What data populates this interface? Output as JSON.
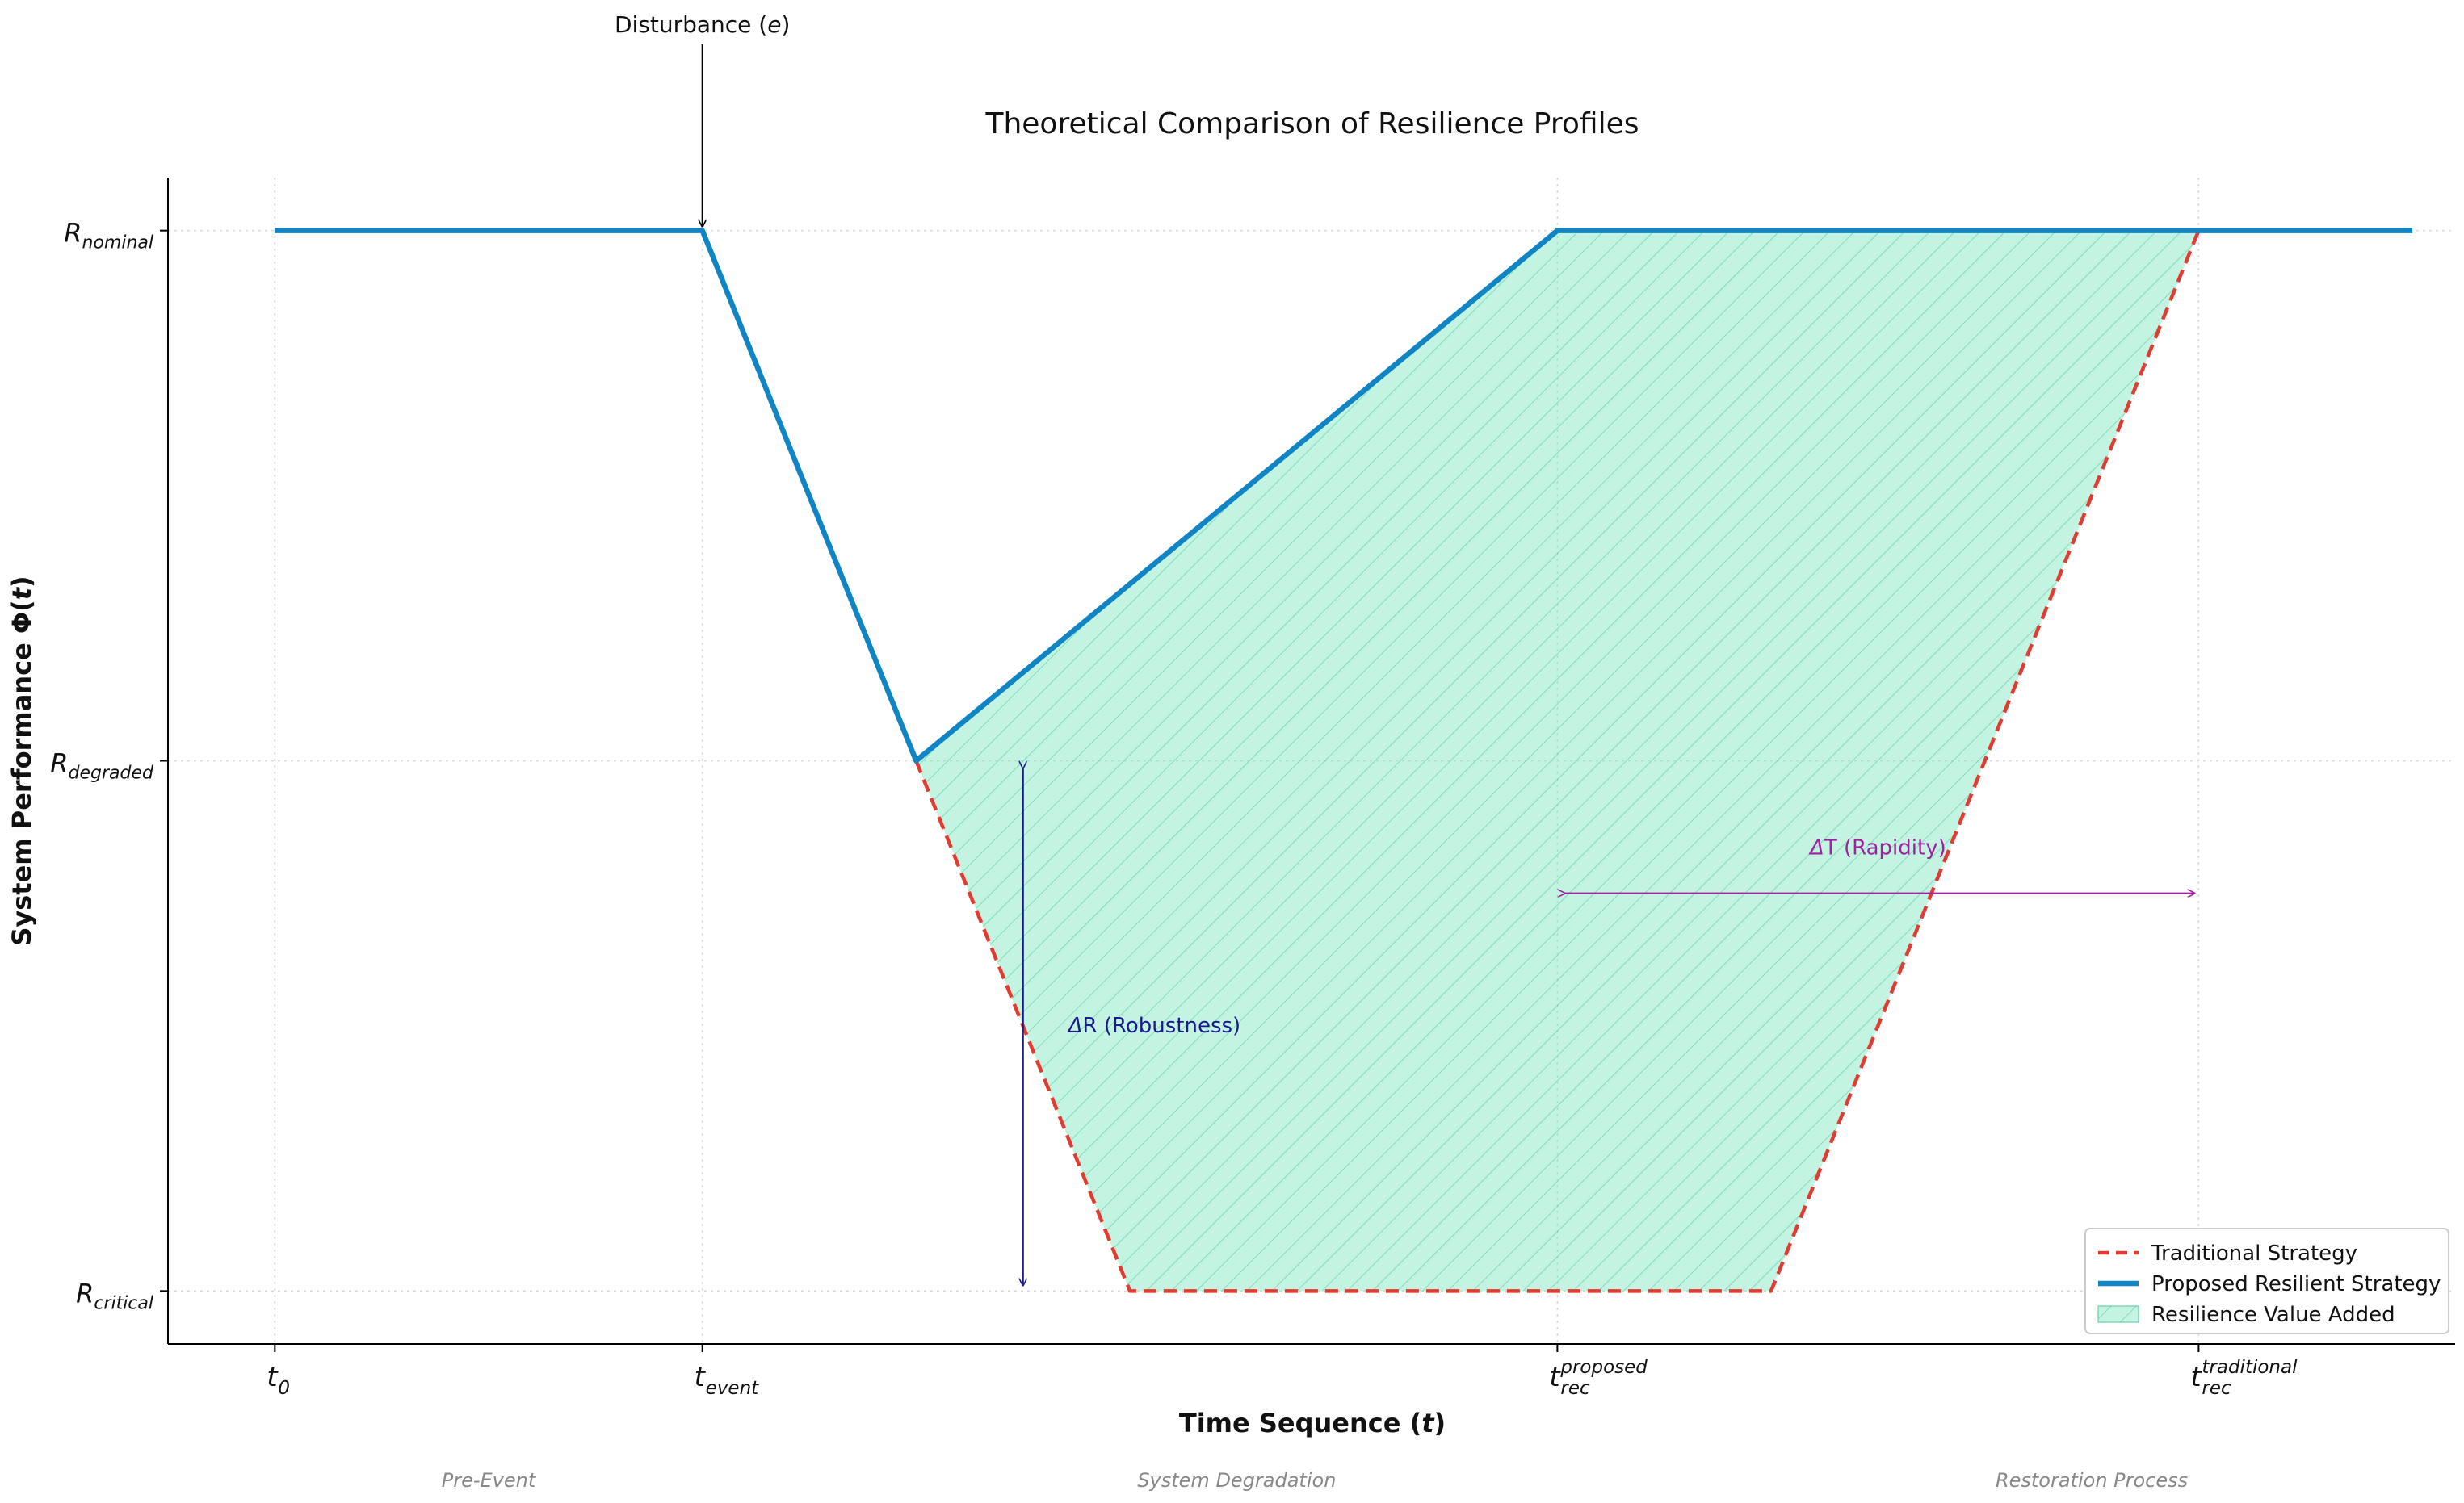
{
  "chart_data": {
    "type": "line",
    "title": "Theoretical Comparison of Resilience Profiles",
    "xlabel": {
      "text": "Time Sequence (",
      "var": "t",
      "close": ")"
    },
    "ylabel": {
      "text": "System Performance Φ(",
      "var": "t",
      "close": ")"
    },
    "grid": true,
    "xlim": [
      -0.5,
      10.2
    ],
    "ylim": [
      -0.1,
      2.1
    ],
    "yticks": [
      {
        "value": 2,
        "base": "R",
        "sub": "nominal"
      },
      {
        "value": 1,
        "base": "R",
        "sub": "degraded"
      },
      {
        "value": 0,
        "base": "R",
        "sub": "critical"
      }
    ],
    "xticks": [
      {
        "value": 0,
        "base": "t",
        "sub": "0",
        "sup": ""
      },
      {
        "value": 2,
        "base": "t",
        "sub": "event",
        "sup": ""
      },
      {
        "value": 6,
        "base": "t",
        "sub": "rec",
        "sup": "proposed"
      },
      {
        "value": 9,
        "base": "t",
        "sub": "rec",
        "sup": "traditional"
      }
    ],
    "series": [
      {
        "name": "Traditional Strategy",
        "color": "#e03c31",
        "style": "dashed",
        "x": [
          3,
          4,
          7,
          9,
          10
        ],
        "y": [
          1,
          0,
          0,
          2,
          2
        ]
      },
      {
        "name": "Proposed Resilient Strategy",
        "color": "#1184c4",
        "style": "solid",
        "x": [
          0,
          2,
          3,
          6,
          10
        ],
        "y": [
          2,
          2,
          1,
          2,
          2
        ]
      }
    ],
    "fill": {
      "name": "Resilience Value Added",
      "color": "#6fe3b8",
      "hatch": true
    },
    "annotations": {
      "disturbance": {
        "text": "Disturbance (",
        "var": "e",
        "close": ")",
        "x": 2,
        "y": 2
      },
      "robustness": {
        "text": "R (Robustness)",
        "x": 3.5,
        "y_from": 1,
        "y_to": 0,
        "color": "#1a1a8c"
      },
      "rapidity": {
        "text": "T (Rapidity)",
        "x_from": 6,
        "x_to": 9,
        "y": 0.75,
        "color": "#a020a0"
      }
    },
    "phases": [
      {
        "label": "Pre-Event",
        "x": 1
      },
      {
        "label": "System Degradation",
        "x": 4.5
      },
      {
        "label": "Restoration Process",
        "x": 8.5
      }
    ],
    "legend": {
      "position": "lower-right",
      "entries": [
        "Traditional Strategy",
        "Proposed Resilient Strategy",
        "Resilience Value Added"
      ]
    }
  }
}
